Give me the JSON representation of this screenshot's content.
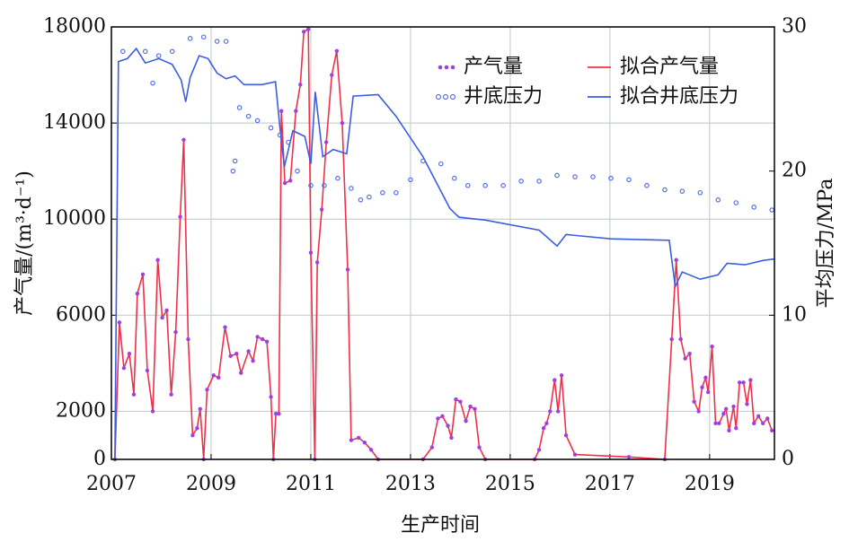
{
  "chart_data": {
    "type": "line",
    "xlabel": "生产时间",
    "ylabel": "产气量/(m³·d⁻¹)",
    "y2label": "平均压力/MPa",
    "xlim": [
      2007,
      2020.3
    ],
    "xticks": [
      2007,
      2009,
      2011,
      2013,
      2015,
      2017,
      2019
    ],
    "ylim": [
      0,
      18000
    ],
    "yticks": [
      0,
      2000,
      6000,
      10000,
      14000,
      18000
    ],
    "y2lim": [
      0,
      30
    ],
    "y2ticks": [
      0,
      10,
      20,
      30
    ],
    "grid": true,
    "legend": "upper right",
    "series": [
      {
        "name": "产气量",
        "color": "#a040e0",
        "mark": "dot",
        "x": [
          2007.07,
          2007.16,
          2007.25,
          2007.36,
          2007.45,
          2007.52,
          2007.63,
          2007.72,
          2007.83,
          2007.93,
          2008.02,
          2008.11,
          2008.2,
          2008.29,
          2008.38,
          2008.45,
          2008.54,
          2008.63,
          2008.72,
          2008.78,
          2008.85,
          2008.92,
          2009.05,
          2009.15,
          2009.28,
          2009.39,
          2009.51,
          2009.6,
          2009.75,
          2009.84,
          2009.93,
          2010.03,
          2010.12,
          2010.2,
          2010.25,
          2010.3,
          2010.36,
          2010.41,
          2010.48,
          2010.59,
          2010.7,
          2010.79,
          2010.86,
          2010.95,
          2011.0,
          2011.08,
          2011.13,
          2011.22,
          2011.31,
          2011.42,
          2011.52,
          2011.63,
          2011.74,
          2011.81,
          2011.96,
          2012.08,
          2012.21,
          2012.35,
          2013.25,
          2013.43,
          2013.55,
          2013.64,
          2013.75,
          2013.82,
          2013.91,
          2014.0,
          2014.11,
          2014.2,
          2014.29,
          2014.38,
          2014.5,
          2015.49,
          2015.58,
          2015.67,
          2015.73,
          2015.8,
          2015.89,
          2015.96,
          2016.03,
          2016.12,
          2016.3,
          2017.38,
          2018.1,
          2018.24,
          2018.33,
          2018.42,
          2018.51,
          2018.6,
          2018.69,
          2018.78,
          2018.85,
          2018.92,
          2018.97,
          2019.05,
          2019.12,
          2019.19,
          2019.28,
          2019.33,
          2019.39,
          2019.48,
          2019.53,
          2019.6,
          2019.68,
          2019.75,
          2019.82,
          2019.89,
          2019.98,
          2020.07,
          2020.16,
          2020.25
        ],
        "values": [
          0,
          5700,
          3800,
          4400,
          2700,
          6900,
          7700,
          3700,
          2000,
          8300,
          5900,
          6200,
          2700,
          5300,
          10100,
          13300,
          5000,
          1000,
          1300,
          2100,
          0,
          2900,
          3500,
          3400,
          5500,
          4300,
          4400,
          3600,
          4500,
          4100,
          5100,
          5000,
          4900,
          2600,
          0,
          1900,
          1900,
          14500,
          11500,
          11600,
          14500,
          15600,
          17800,
          17900,
          8600,
          0,
          8200,
          10400,
          13200,
          16000,
          17000,
          14000,
          7900,
          800,
          900,
          700,
          400,
          0,
          0,
          500,
          1700,
          1800,
          1400,
          900,
          2500,
          2400,
          1600,
          2200,
          2100,
          500,
          0,
          0,
          400,
          1300,
          1500,
          2000,
          3300,
          2000,
          3500,
          1000,
          200,
          100,
          0,
          5000,
          8300,
          5000,
          4200,
          4400,
          2400,
          2000,
          3000,
          3400,
          2800,
          4700,
          1500,
          1500,
          1900,
          2100,
          1200,
          2200,
          1300,
          3200,
          3200,
          2300,
          3300,
          1500,
          1800,
          1500,
          1700,
          1200
        ]
      },
      {
        "name": "拟合产气量",
        "color": "#f0304a",
        "mark": "line",
        "x": [
          2007.07,
          2007.16,
          2007.25,
          2007.36,
          2007.45,
          2007.52,
          2007.63,
          2007.72,
          2007.83,
          2007.93,
          2008.02,
          2008.11,
          2008.2,
          2008.29,
          2008.38,
          2008.45,
          2008.54,
          2008.63,
          2008.72,
          2008.78,
          2008.85,
          2008.92,
          2009.05,
          2009.15,
          2009.28,
          2009.39,
          2009.51,
          2009.6,
          2009.75,
          2009.84,
          2009.93,
          2010.03,
          2010.12,
          2010.2,
          2010.25,
          2010.3,
          2010.36,
          2010.41,
          2010.48,
          2010.59,
          2010.7,
          2010.79,
          2010.86,
          2010.95,
          2011.0,
          2011.08,
          2011.13,
          2011.22,
          2011.31,
          2011.42,
          2011.52,
          2011.63,
          2011.74,
          2011.81,
          2011.96,
          2012.08,
          2012.21,
          2012.35,
          2013.25,
          2013.43,
          2013.55,
          2013.64,
          2013.75,
          2013.82,
          2013.91,
          2014.0,
          2014.11,
          2014.2,
          2014.29,
          2014.38,
          2014.5,
          2015.49,
          2015.58,
          2015.67,
          2015.73,
          2015.8,
          2015.89,
          2015.96,
          2016.03,
          2016.12,
          2016.3,
          2017.38,
          2018.1,
          2018.24,
          2018.33,
          2018.42,
          2018.51,
          2018.6,
          2018.69,
          2018.78,
          2018.85,
          2018.92,
          2018.97,
          2019.05,
          2019.12,
          2019.19,
          2019.28,
          2019.33,
          2019.39,
          2019.48,
          2019.53,
          2019.6,
          2019.68,
          2019.75,
          2019.82,
          2019.89,
          2019.98,
          2020.07,
          2020.16,
          2020.25
        ],
        "values": [
          0,
          5700,
          3800,
          4400,
          2700,
          6900,
          7700,
          3700,
          2000,
          8300,
          5900,
          6200,
          2700,
          5300,
          10100,
          13300,
          5000,
          1000,
          1300,
          2100,
          0,
          2900,
          3500,
          3400,
          5500,
          4300,
          4400,
          3600,
          4500,
          4100,
          5100,
          5000,
          4900,
          2600,
          0,
          1900,
          1900,
          14500,
          11500,
          11600,
          14500,
          15600,
          17800,
          17900,
          8600,
          0,
          8200,
          10400,
          13200,
          16000,
          17000,
          14000,
          7900,
          800,
          900,
          700,
          400,
          0,
          0,
          500,
          1700,
          1800,
          1400,
          900,
          2500,
          2400,
          1600,
          2200,
          2100,
          500,
          0,
          0,
          400,
          1300,
          1500,
          2000,
          3300,
          2000,
          3500,
          1000,
          200,
          100,
          0,
          5000,
          8300,
          5000,
          4200,
          4400,
          2400,
          2000,
          3000,
          3400,
          2800,
          4700,
          1500,
          1500,
          1900,
          2100,
          1200,
          2200,
          1300,
          3200,
          3200,
          2300,
          3300,
          1500,
          1800,
          1500,
          1700,
          1200
        ]
      },
      {
        "name": "井底压力",
        "color": "#5a72e0",
        "mark": "ring",
        "axis": "y2",
        "x": [
          2007.23,
          2007.68,
          2007.83,
          2007.95,
          2008.22,
          2008.58,
          2008.85,
          2009.12,
          2009.3,
          2009.44,
          2009.48,
          2009.57,
          2009.75,
          2009.93,
          2010.2,
          2010.38,
          2010.55,
          2010.73,
          2011.0,
          2011.27,
          2011.54,
          2011.81,
          2012.0,
          2012.17,
          2012.44,
          2012.71,
          2013.0,
          2013.25,
          2013.61,
          2013.88,
          2014.15,
          2014.5,
          2014.86,
          2015.22,
          2015.58,
          2015.94,
          2016.3,
          2016.66,
          2017.02,
          2017.38,
          2017.74,
          2018.1,
          2018.45,
          2018.81,
          2019.17,
          2019.53,
          2019.89,
          2020.25
        ],
        "values": [
          28.3,
          28.3,
          26.1,
          28.0,
          28.3,
          29.2,
          29.3,
          29.0,
          29.0,
          20.0,
          20.7,
          24.4,
          23.8,
          23.5,
          23.0,
          22.5,
          22.0,
          20.0,
          19.0,
          19.0,
          19.5,
          18.8,
          18.0,
          18.2,
          18.5,
          18.5,
          19.4,
          20.7,
          20.5,
          19.5,
          19.0,
          19.0,
          19.0,
          19.3,
          19.3,
          19.7,
          19.6,
          19.6,
          19.5,
          19.4,
          19.0,
          18.7,
          18.6,
          18.5,
          18.0,
          17.8,
          17.5,
          17.3
        ]
      },
      {
        "name": "拟合井底压力",
        "color": "#3a5ee0",
        "mark": "line",
        "axis": "y2",
        "x": [
          2007.07,
          2007.14,
          2007.32,
          2007.5,
          2007.68,
          2007.95,
          2008.22,
          2008.4,
          2008.49,
          2008.58,
          2008.76,
          2008.94,
          2009.12,
          2009.3,
          2009.48,
          2009.66,
          2010.02,
          2010.29,
          2010.38,
          2010.47,
          2010.64,
          2010.88,
          2011.0,
          2011.09,
          2011.24,
          2011.45,
          2011.72,
          2011.85,
          2012.35,
          2012.71,
          2013.25,
          2013.79,
          2013.97,
          2014.5,
          2015.58,
          2015.94,
          2016.12,
          2017.02,
          2018.19,
          2018.31,
          2018.45,
          2018.81,
          2019.17,
          2019.35,
          2019.71,
          2020.07,
          2020.29
        ],
        "values": [
          0,
          27.6,
          27.8,
          28.5,
          27.5,
          27.8,
          27.4,
          26.3,
          24.8,
          26.5,
          28.0,
          27.8,
          26.8,
          26.4,
          26.6,
          26.0,
          26.0,
          26.2,
          23.0,
          20.3,
          22.8,
          22.4,
          20.5,
          25.5,
          21.0,
          21.5,
          21.2,
          25.2,
          25.3,
          23.8,
          21.0,
          17.4,
          16.8,
          16.6,
          15.9,
          14.8,
          15.6,
          15.3,
          15.2,
          12.0,
          13.0,
          12.5,
          12.8,
          13.6,
          13.5,
          13.8,
          13.9
        ]
      }
    ]
  }
}
